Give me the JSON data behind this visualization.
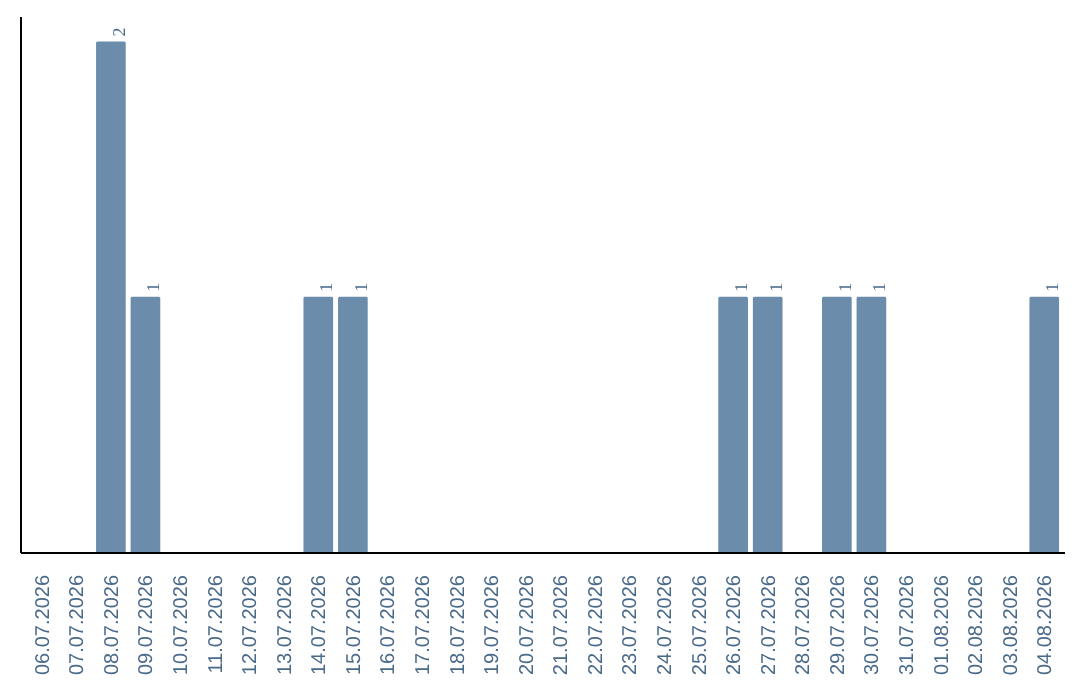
{
  "chart_data": {
    "type": "bar",
    "categories": [
      "06.07.2026",
      "07.07.2026",
      "08.07.2026",
      "09.07.2026",
      "10.07.2026",
      "11.07.2026",
      "12.07.2026",
      "13.07.2026",
      "14.07.2026",
      "15.07.2026",
      "16.07.2026",
      "17.07.2026",
      "18.07.2026",
      "19.07.2026",
      "20.07.2026",
      "21.07.2026",
      "22.07.2026",
      "23.07.2026",
      "24.07.2026",
      "25.07.2026",
      "26.07.2026",
      "27.07.2026",
      "28.07.2026",
      "29.07.2026",
      "30.07.2026",
      "31.07.2026",
      "01.08.2026",
      "02.08.2026",
      "03.08.2026",
      "04.08.2026"
    ],
    "values": [
      0,
      0,
      2,
      1,
      0,
      0,
      0,
      0,
      1,
      1,
      0,
      0,
      0,
      0,
      0,
      0,
      0,
      0,
      0,
      0,
      1,
      1,
      0,
      1,
      1,
      0,
      0,
      0,
      0,
      1
    ],
    "value_labels": [
      null,
      null,
      "2",
      "1",
      null,
      null,
      null,
      null,
      "1",
      "1",
      null,
      null,
      null,
      null,
      null,
      null,
      null,
      null,
      null,
      null,
      "1",
      "1",
      null,
      "1",
      "1",
      null,
      null,
      null,
      null,
      "1"
    ],
    "color": "#6b8cab",
    "ylim": [
      0,
      2.1
    ],
    "tick_labels": "x",
    "grid": false
  }
}
